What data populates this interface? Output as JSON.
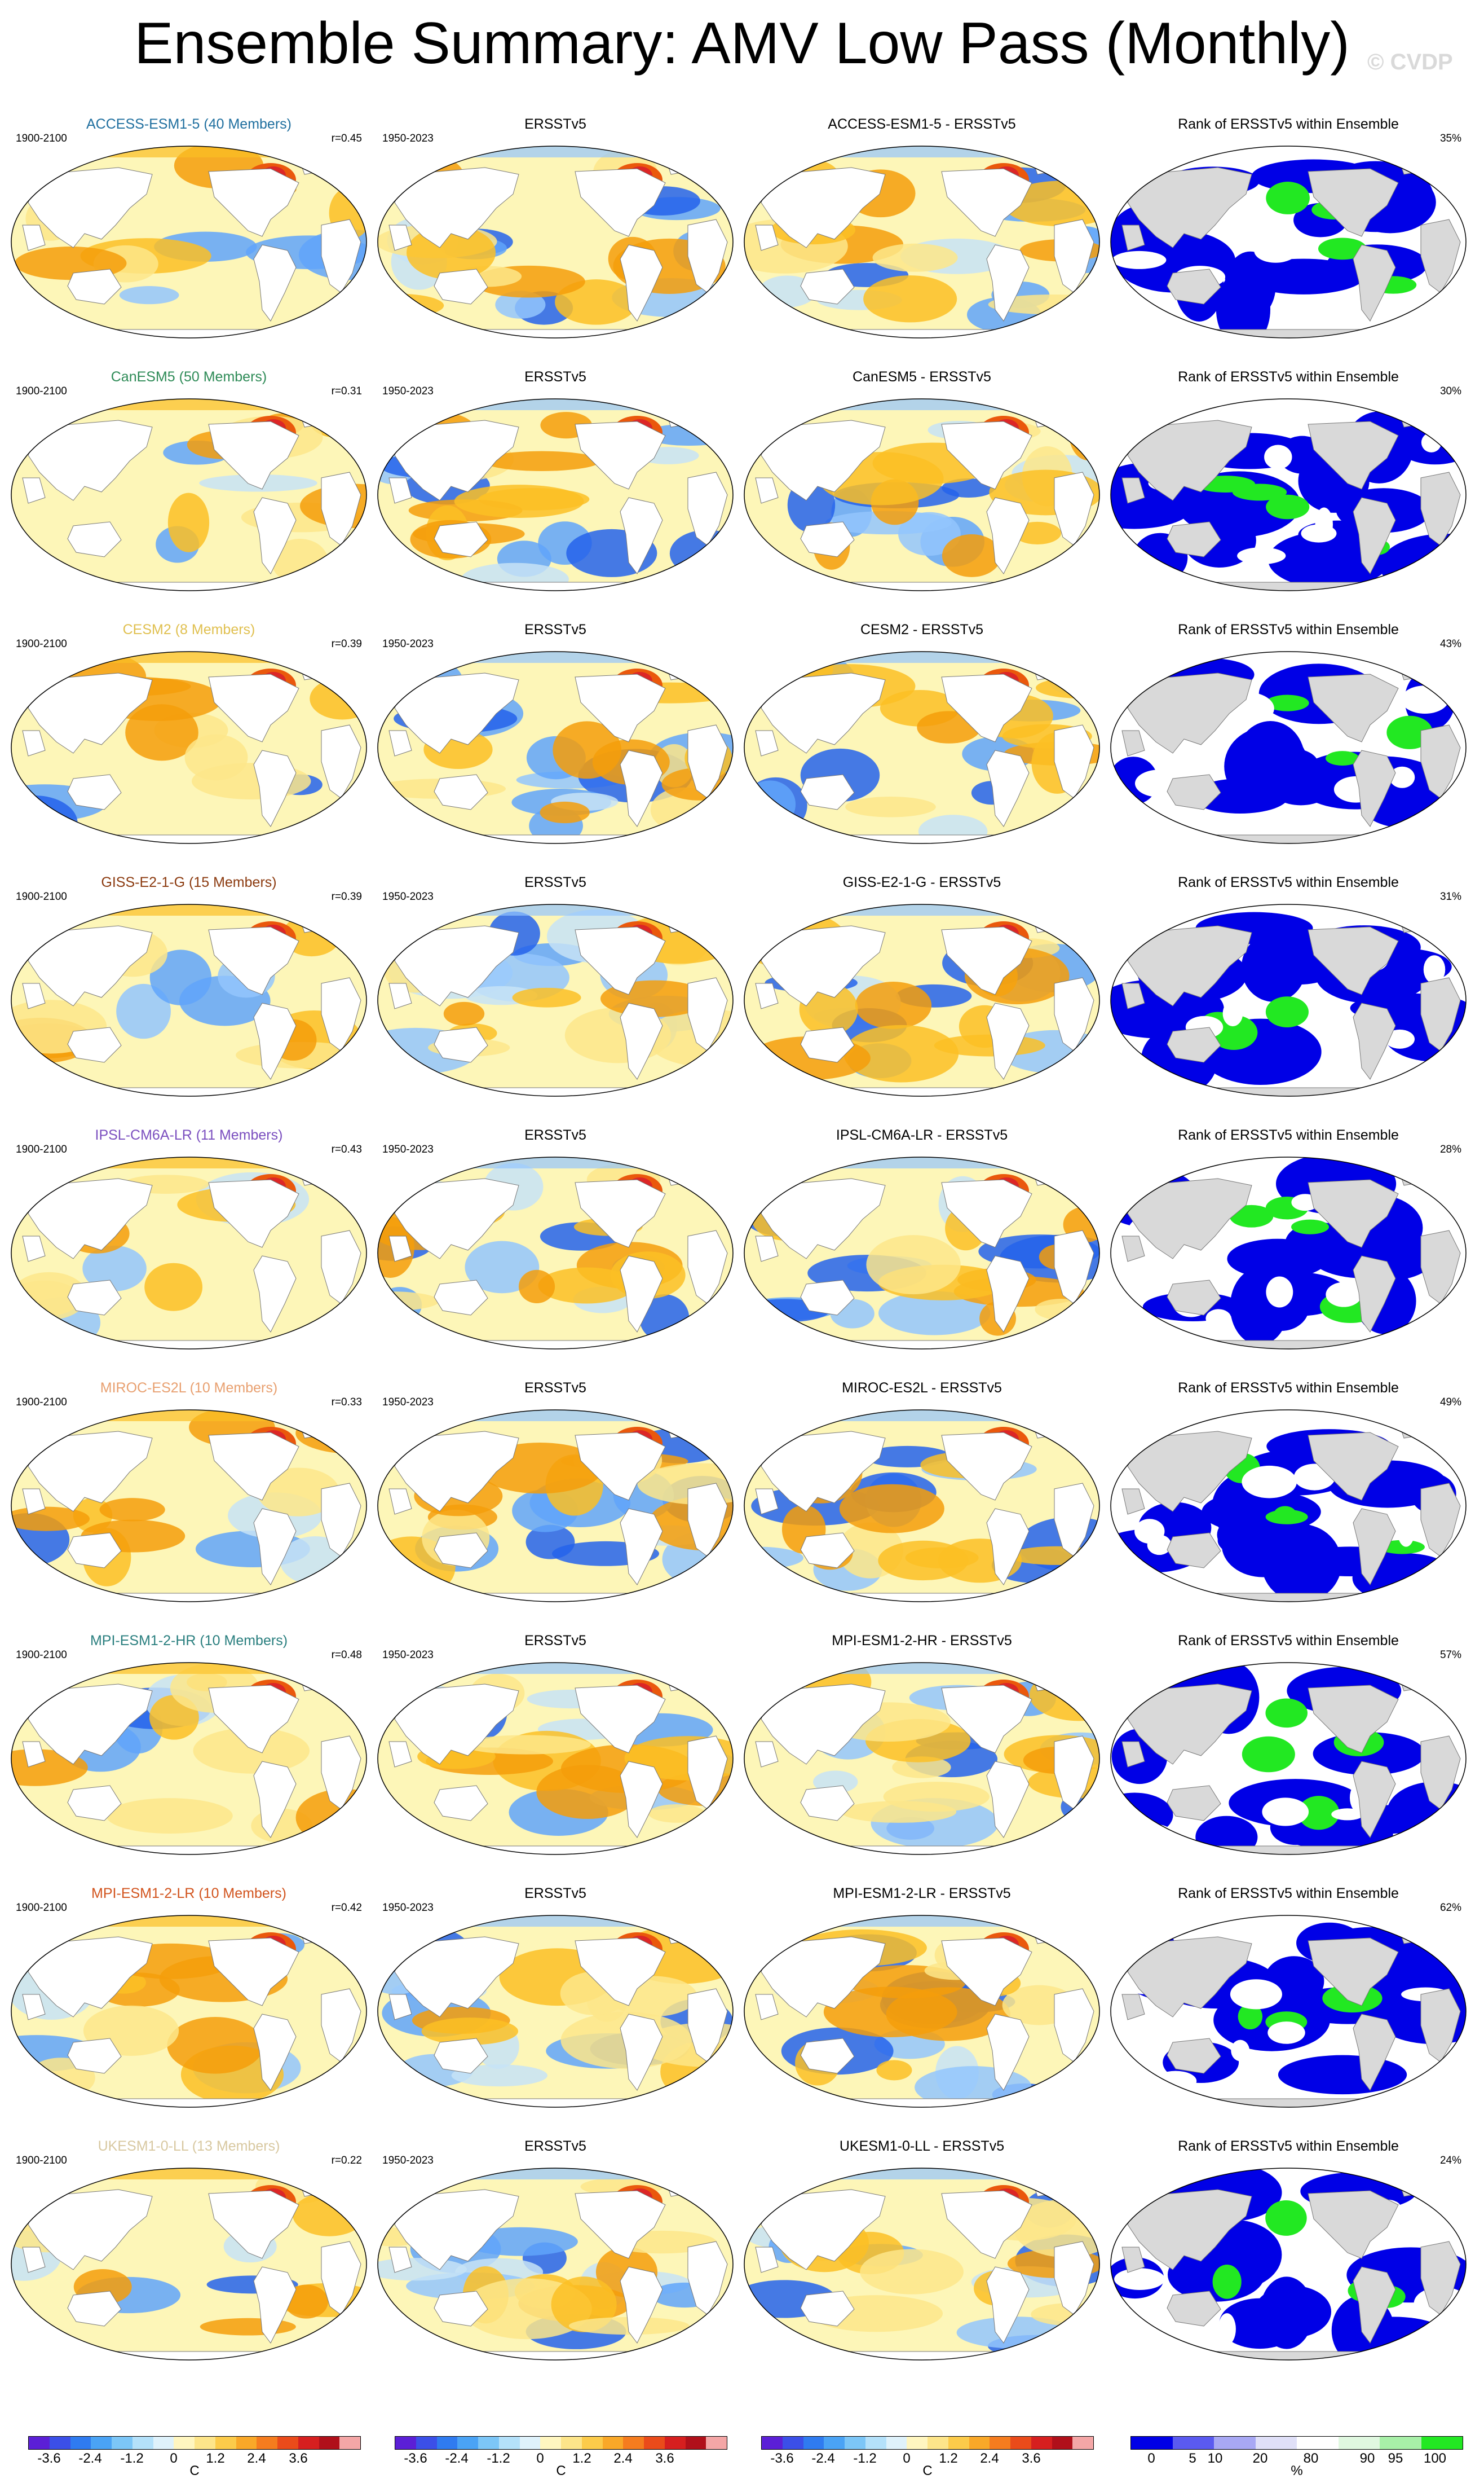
{
  "page": {
    "title": "Ensemble Summary: AMV Low Pass (Monthly)",
    "watermark": "© CVDP"
  },
  "rows": [
    {
      "model": "ACCESS-ESM1-5 (40 Members)",
      "model_color": "#1f6f9f",
      "period": "1900-2100",
      "r": "r=0.45",
      "obs_title": "ERSSTv5",
      "obs_period": "1950-2023",
      "diff_title": "ACCESS-ESM1-5 - ERSSTv5",
      "rank_title": "Rank of ERSSTv5 within Ensemble",
      "rank_pct": "35%"
    },
    {
      "model": "CanESM5 (50 Members)",
      "model_color": "#2e8b57",
      "period": "1900-2100",
      "r": "r=0.31",
      "obs_title": "ERSSTv5",
      "obs_period": "1950-2023",
      "diff_title": "CanESM5 - ERSSTv5",
      "rank_title": "Rank of ERSSTv5 within Ensemble",
      "rank_pct": "30%"
    },
    {
      "model": "CESM2 (8 Members)",
      "model_color": "#e0c050",
      "period": "1900-2100",
      "r": "r=0.39",
      "obs_title": "ERSSTv5",
      "obs_period": "1950-2023",
      "diff_title": "CESM2 - ERSSTv5",
      "rank_title": "Rank of ERSSTv5 within Ensemble",
      "rank_pct": "43%"
    },
    {
      "model": "GISS-E2-1-G (15 Members)",
      "model_color": "#8b3a0f",
      "period": "1900-2100",
      "r": "r=0.39",
      "obs_title": "ERSSTv5",
      "obs_period": "1950-2023",
      "diff_title": "GISS-E2-1-G - ERSSTv5",
      "rank_title": "Rank of ERSSTv5 within Ensemble",
      "rank_pct": "31%"
    },
    {
      "model": "IPSL-CM6A-LR (11 Members)",
      "model_color": "#7b4fbf",
      "period": "1900-2100",
      "r": "r=0.43",
      "obs_title": "ERSSTv5",
      "obs_period": "1950-2023",
      "diff_title": "IPSL-CM6A-LR - ERSSTv5",
      "rank_title": "Rank of ERSSTv5 within Ensemble",
      "rank_pct": "28%"
    },
    {
      "model": "MIROC-ES2L (10 Members)",
      "model_color": "#e8a070",
      "period": "1900-2100",
      "r": "r=0.33",
      "obs_title": "ERSSTv5",
      "obs_period": "1950-2023",
      "diff_title": "MIROC-ES2L - ERSSTv5",
      "rank_title": "Rank of ERSSTv5 within Ensemble",
      "rank_pct": "49%"
    },
    {
      "model": "MPI-ESM1-2-HR (10 Members)",
      "model_color": "#2a7f7f",
      "period": "1900-2100",
      "r": "r=0.48",
      "obs_title": "ERSSTv5",
      "obs_period": "1950-2023",
      "diff_title": "MPI-ESM1-2-HR - ERSSTv5",
      "rank_title": "Rank of ERSSTv5 within Ensemble",
      "rank_pct": "57%"
    },
    {
      "model": "MPI-ESM1-2-LR (10 Members)",
      "model_color": "#d2541e",
      "period": "1900-2100",
      "r": "r=0.42",
      "obs_title": "ERSSTv5",
      "obs_period": "1950-2023",
      "diff_title": "MPI-ESM1-2-LR - ERSSTv5",
      "rank_title": "Rank of ERSSTv5 within Ensemble",
      "rank_pct": "62%"
    },
    {
      "model": "UKESM1-0-LL (13 Members)",
      "model_color": "#d8c8a0",
      "period": "1900-2100",
      "r": "r=0.22",
      "obs_title": "ERSSTv5",
      "obs_period": "1950-2023",
      "diff_title": "UKESM1-0-LL - ERSSTv5",
      "rank_title": "Rank of ERSSTv5 within Ensemble",
      "rank_pct": "24%"
    }
  ],
  "colors": {
    "ocean_neutral": "#fdf6b8",
    "land": "#ffffff",
    "land_rank": "#d9d9d9",
    "warm": [
      "#fde68a",
      "#fbbf24",
      "#f59e0b",
      "#ea580c",
      "#dc2626",
      "#9f1239"
    ],
    "cool": [
      "#c7e3f6",
      "#93c5fd",
      "#60a5fa",
      "#2563eb"
    ],
    "rank_blue": "#0000e6",
    "rank_green": "#22e822",
    "rank_white": "#ffffff"
  },
  "temp_colorbar": {
    "ticks": [
      "-3.6",
      "-2.4",
      "-1.2",
      "0",
      "1.2",
      "2.4",
      "3.6"
    ],
    "unit": "C",
    "colors": [
      "#5b1fd6",
      "#3b4fe8",
      "#2f7bf0",
      "#4aa3f5",
      "#7cc6f7",
      "#b4e1fa",
      "#dff2fb",
      "#fff6c0",
      "#fde58a",
      "#fccb4a",
      "#f9a828",
      "#f57c1e",
      "#ea4b1a",
      "#d61f1f",
      "#b0101a",
      "#f4a6a6"
    ]
  },
  "rank_colorbar": {
    "ticks": [
      "0",
      "5",
      "10",
      "20",
      "80",
      "90",
      "95",
      "100"
    ],
    "unit": "%",
    "colors": [
      "#0000e6",
      "#5a5af0",
      "#a8a8f4",
      "#e0e0f8",
      "#ffffff",
      "#e0f8e0",
      "#a8f0a8",
      "#22e822"
    ]
  }
}
